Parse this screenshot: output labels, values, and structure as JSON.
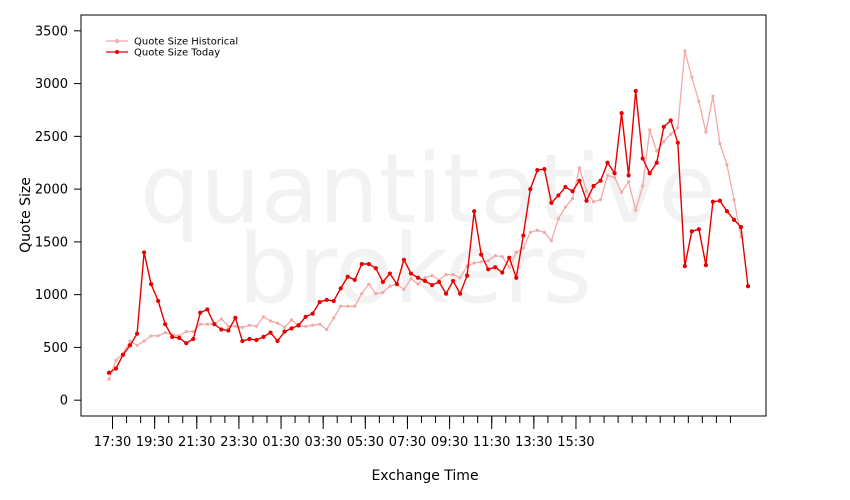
{
  "chart_data": {
    "type": "line",
    "xlabel": "Exchange Time",
    "ylabel": "Quote Size",
    "ylim": [
      -150,
      3650
    ],
    "yticks": [
      0,
      500,
      1000,
      1500,
      2000,
      2500,
      3000,
      3500
    ],
    "xticks": [
      {
        "i": 0.5,
        "label": "17:30"
      },
      {
        "i": 6.5,
        "label": "19:30"
      },
      {
        "i": 12.5,
        "label": "21:30"
      },
      {
        "i": 18.5,
        "label": "23:30"
      },
      {
        "i": 24.5,
        "label": "01:30"
      },
      {
        "i": 30.5,
        "label": "03:30"
      },
      {
        "i": 36.5,
        "label": "05:30"
      },
      {
        "i": 42.5,
        "label": "07:30"
      },
      {
        "i": 48.5,
        "label": "09:30"
      },
      {
        "i": 54.5,
        "label": "11:30"
      },
      {
        "i": 60.5,
        "label": "13:30"
      },
      {
        "i": 66.5,
        "label": "15:30"
      }
    ],
    "grid": false,
    "legend": "top-left",
    "watermark": [
      "quantitative",
      "brokers"
    ],
    "series": [
      {
        "name": "Quote Size Historical",
        "color": "#f4a9a9",
        "values": [
          200,
          380,
          440,
          560,
          520,
          560,
          610,
          610,
          640,
          620,
          610,
          650,
          650,
          720,
          720,
          720,
          770,
          700,
          700,
          690,
          710,
          700,
          790,
          750,
          730,
          690,
          760,
          700,
          700,
          710,
          720,
          670,
          780,
          890,
          890,
          890,
          1010,
          1100,
          1010,
          1020,
          1080,
          1100,
          1050,
          1150,
          1100,
          1160,
          1180,
          1140,
          1190,
          1190,
          1160,
          1270,
          1300,
          1310,
          1320,
          1370,
          1360,
          1260,
          1400,
          1440,
          1590,
          1610,
          1590,
          1510,
          1720,
          1830,
          1910,
          2200,
          1980,
          1880,
          1900,
          2130,
          2110,
          1970,
          2070,
          1800,
          2030,
          2560,
          2360,
          2450,
          2520,
          2580,
          3310,
          3060,
          2830,
          2540,
          2880,
          2430,
          2230,
          1900,
          1550
        ]
      },
      {
        "name": "Quote Size Today",
        "color": "#e60000",
        "values": [
          260,
          300,
          430,
          520,
          630,
          1400,
          1100,
          940,
          720,
          600,
          590,
          540,
          580,
          830,
          860,
          720,
          670,
          660,
          780,
          560,
          580,
          570,
          600,
          640,
          560,
          650,
          680,
          710,
          790,
          820,
          930,
          950,
          940,
          1060,
          1170,
          1140,
          1290,
          1290,
          1250,
          1120,
          1200,
          1100,
          1330,
          1200,
          1160,
          1130,
          1090,
          1120,
          1010,
          1130,
          1010,
          1180,
          1790,
          1380,
          1240,
          1260,
          1210,
          1350,
          1160,
          1560,
          2000,
          2180,
          2190,
          1870,
          1940,
          2020,
          1980,
          2080,
          1890,
          2030,
          2080,
          2250,
          2150,
          2720,
          2130,
          2930,
          2290,
          2150,
          2250,
          2590,
          2650,
          2440,
          1270,
          1600,
          1620,
          1280,
          1880,
          1890,
          1790,
          1710,
          1640,
          1080
        ]
      }
    ]
  }
}
